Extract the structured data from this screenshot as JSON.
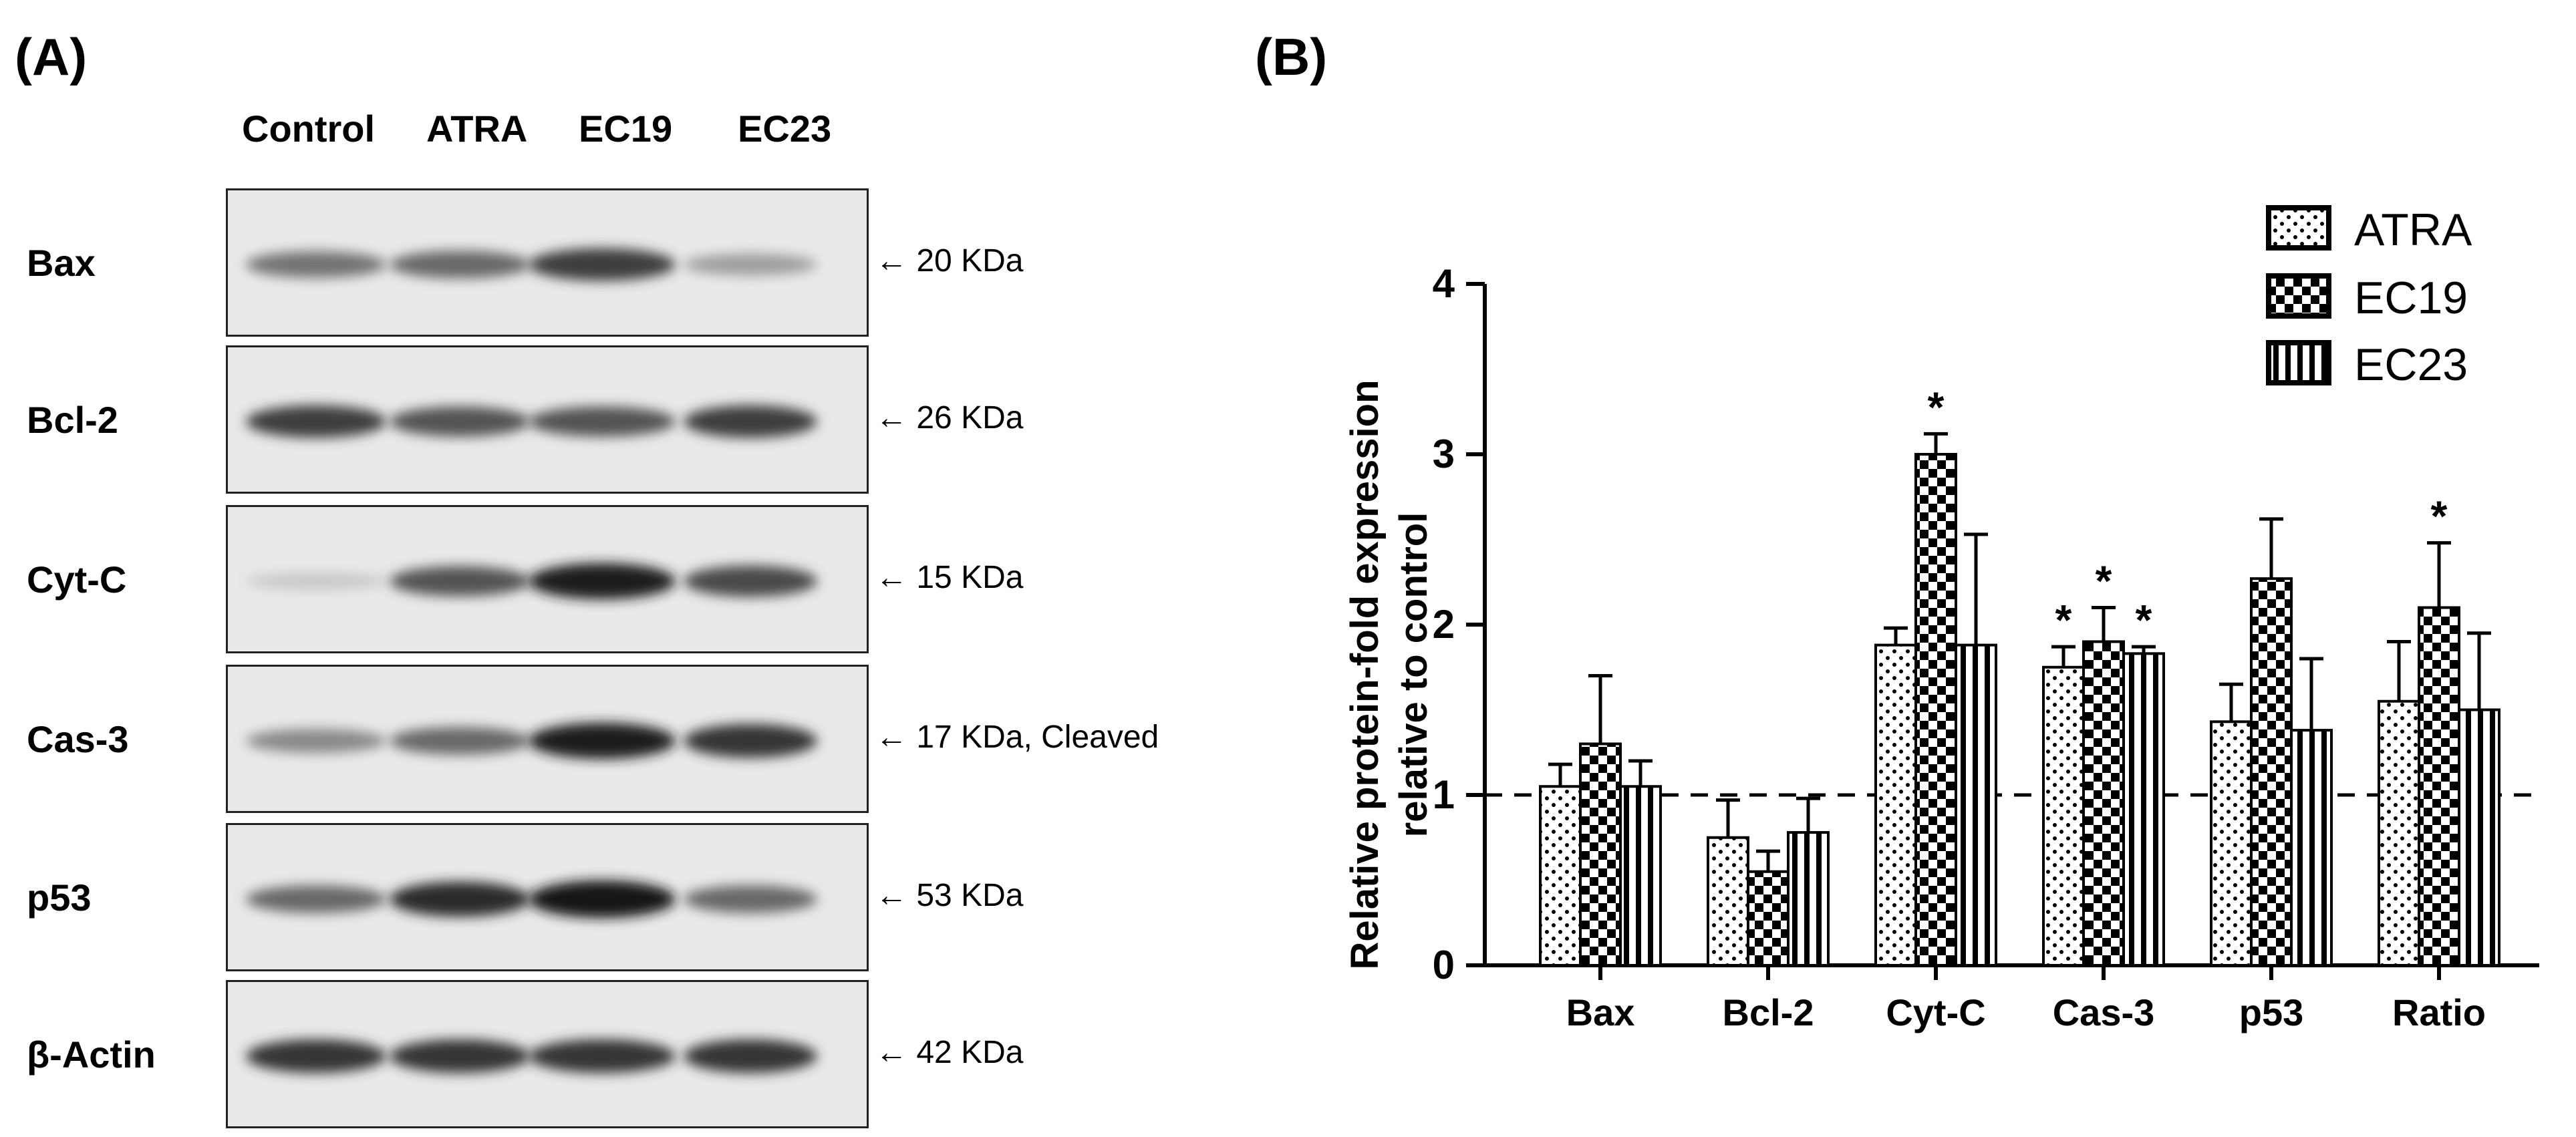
{
  "panel_a": {
    "label": "(A)",
    "lanes": [
      "Control",
      "ATRA",
      "EC19",
      "EC23"
    ],
    "blots": [
      {
        "protein": "Bax",
        "mw": "20 KDa",
        "intensity": [
          0.55,
          0.6,
          0.8,
          0.35
        ]
      },
      {
        "protein": "Bcl-2",
        "mw": "26 KDa",
        "intensity": [
          0.8,
          0.7,
          0.7,
          0.8
        ]
      },
      {
        "protein": "Cyt-C",
        "mw": "15 KDa",
        "intensity": [
          0.15,
          0.7,
          0.95,
          0.75
        ]
      },
      {
        "protein": "Cas-3",
        "mw": "17 KDa, Cleaved",
        "intensity": [
          0.45,
          0.6,
          0.95,
          0.85
        ]
      },
      {
        "protein": "p53",
        "mw": "53 KDa",
        "intensity": [
          0.6,
          0.9,
          1.0,
          0.6
        ]
      },
      {
        "protein": "β-Actin",
        "mw": "42 KDa",
        "intensity": [
          0.85,
          0.85,
          0.85,
          0.85
        ]
      }
    ]
  },
  "panel_b": {
    "label": "(B)"
  },
  "chart_data": {
    "type": "bar",
    "categories": [
      "Bax",
      "Bcl-2",
      "Cyt-C",
      "Cas-3",
      "p53",
      "Ratio"
    ],
    "ylabel": "Relative protein-fold expression relative to control",
    "ylabel_line1": "Relative protein-fold expression",
    "ylabel_line2": "relative to control",
    "ylim": [
      0,
      4
    ],
    "yticks": [
      0,
      1,
      2,
      3,
      4
    ],
    "reference_line": 1,
    "legend_position": "top-right",
    "series": [
      {
        "name": "ATRA",
        "pattern": "dots",
        "values": [
          1.05,
          0.75,
          1.88,
          1.75,
          1.43,
          1.55
        ],
        "errors": [
          0.13,
          0.22,
          0.1,
          0.12,
          0.22,
          0.35
        ],
        "significant": [
          false,
          false,
          false,
          true,
          false,
          false
        ]
      },
      {
        "name": "EC19",
        "pattern": "checker",
        "values": [
          1.3,
          0.55,
          3.0,
          1.9,
          2.27,
          2.1
        ],
        "errors": [
          0.4,
          0.12,
          0.12,
          0.2,
          0.35,
          0.38
        ],
        "significant": [
          false,
          false,
          true,
          true,
          false,
          true
        ]
      },
      {
        "name": "EC23",
        "pattern": "stripes",
        "values": [
          1.05,
          0.78,
          1.88,
          1.83,
          1.38,
          1.5
        ],
        "errors": [
          0.15,
          0.2,
          0.65,
          0.04,
          0.42,
          0.45
        ],
        "significant": [
          false,
          false,
          false,
          true,
          false,
          false
        ]
      }
    ],
    "significance_marker": "*"
  }
}
